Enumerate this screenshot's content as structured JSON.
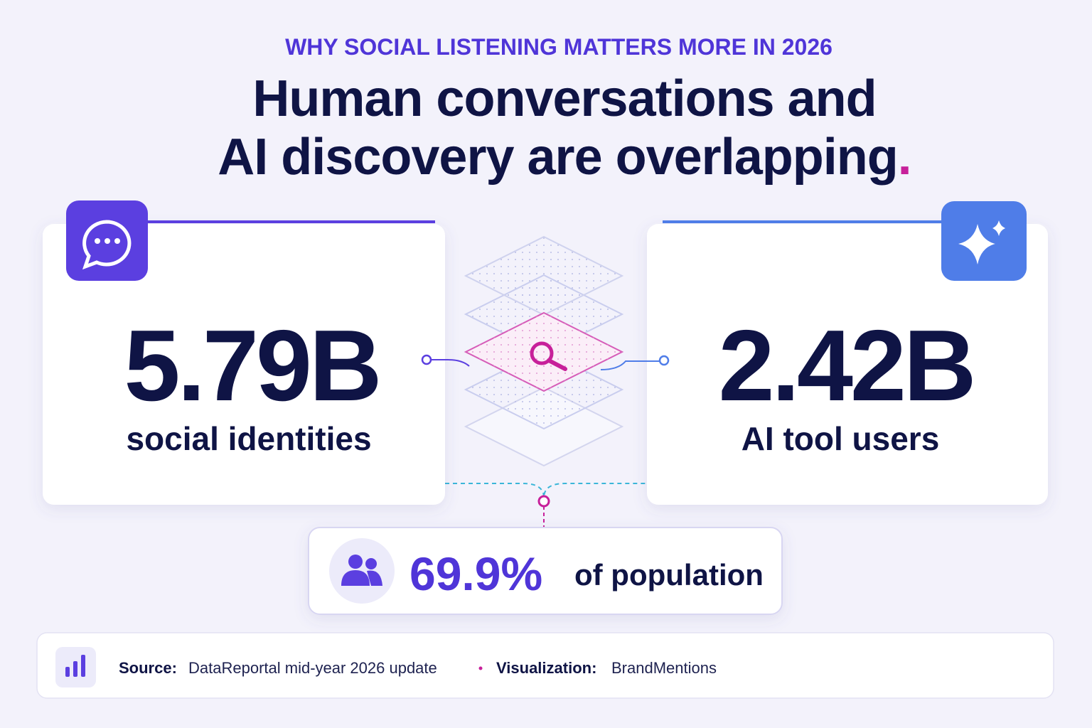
{
  "header": {
    "eyebrow": "WHY SOCIAL LISTENING MATTERS MORE IN 2026",
    "title_line1": "Human conversations and",
    "title_line2": "AI discovery are overlapping",
    "title_accent": "."
  },
  "cards": [
    {
      "value": "5.79B",
      "label": "social identities"
    },
    {
      "value": "2.42B",
      "label": "AI tool users"
    }
  ],
  "overlap": {
    "value": "69.9%",
    "label": "of population"
  },
  "footer": {
    "source_label": "Source:",
    "source": "DataReportal mid-year 2026 update",
    "viz_label": "Visualization:",
    "viz": "BrandMentions"
  }
}
